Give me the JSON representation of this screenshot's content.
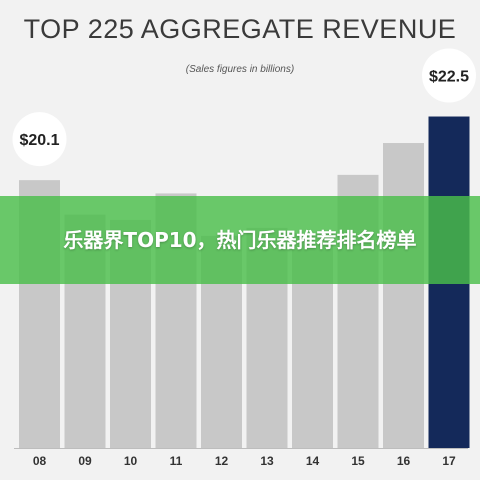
{
  "chart_data": {
    "type": "bar",
    "title": "TOP 225 AGGREGATE REVENUE",
    "subtitle": "(Sales figures in billions)",
    "categories": [
      "08",
      "09",
      "10",
      "11",
      "12",
      "13",
      "14",
      "15",
      "16",
      "17"
    ],
    "values": [
      20.1,
      18.8,
      18.6,
      19.6,
      18.0,
      18.3,
      18.1,
      20.3,
      21.5,
      22.5
    ],
    "data_labels": [
      {
        "category": "08",
        "text": "$20.1"
      },
      {
        "category": "17",
        "text": "$22.5"
      }
    ],
    "ylim": [
      10,
      23.5
    ],
    "colors": {
      "bar": "#c8c8c8",
      "highlight": "#14295a"
    },
    "highlight": "17",
    "grid": false
  },
  "overlay": {
    "text": "乐器界TOP10，热门乐器推荐排名榜单",
    "color": "#4abe4a"
  }
}
